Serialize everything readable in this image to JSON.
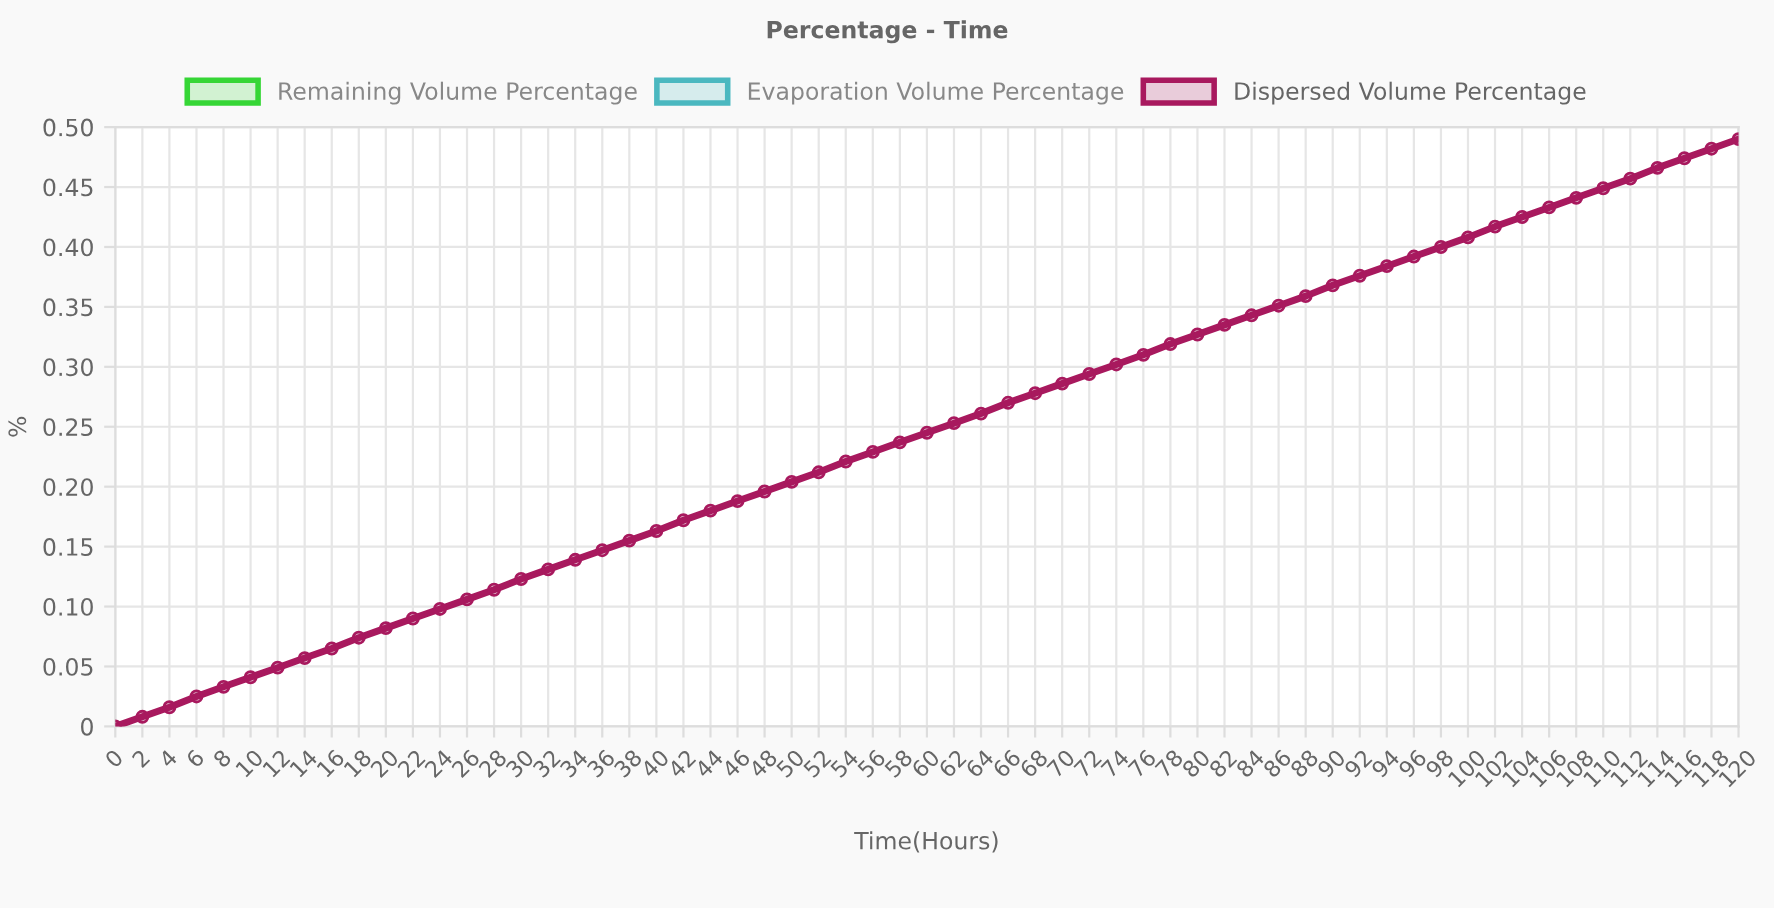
{
  "chart_data": {
    "type": "line",
    "title": "Percentage - Time",
    "xlabel": "Time(Hours)",
    "ylabel": "%",
    "x": [
      0,
      2,
      4,
      6,
      8,
      10,
      12,
      14,
      16,
      18,
      20,
      22,
      24,
      26,
      28,
      30,
      32,
      34,
      36,
      38,
      40,
      42,
      44,
      46,
      48,
      50,
      52,
      54,
      56,
      58,
      60,
      62,
      64,
      66,
      68,
      70,
      72,
      74,
      76,
      78,
      80,
      82,
      84,
      86,
      88,
      90,
      92,
      94,
      96,
      98,
      100,
      102,
      104,
      106,
      108,
      110,
      112,
      114,
      116,
      118,
      120
    ],
    "series": [
      {
        "name": "Remaining Volume Percentage",
        "color": "#36d636",
        "values": [
          null,
          null,
          null,
          null,
          null,
          null,
          null,
          null,
          null,
          null,
          null,
          null,
          null,
          null,
          null,
          null,
          null,
          null,
          null,
          null,
          null,
          null,
          null,
          null,
          null,
          null,
          null,
          null,
          null,
          null,
          null,
          null,
          null,
          null,
          null,
          null,
          null,
          null,
          null,
          null,
          null,
          null,
          null,
          null,
          null,
          null,
          null,
          null,
          null,
          null,
          null,
          null,
          null,
          null,
          null,
          null,
          null,
          null,
          null,
          null,
          null
        ]
      },
      {
        "name": "Evaporation Volume Percentage",
        "color": "#4bb8c0",
        "values": [
          null,
          null,
          null,
          null,
          null,
          null,
          null,
          null,
          null,
          null,
          null,
          null,
          null,
          null,
          null,
          null,
          null,
          null,
          null,
          null,
          null,
          null,
          null,
          null,
          null,
          null,
          null,
          null,
          null,
          null,
          null,
          null,
          null,
          null,
          null,
          null,
          null,
          null,
          null,
          null,
          null,
          null,
          null,
          null,
          null,
          null,
          null,
          null,
          null,
          null,
          null,
          null,
          null,
          null,
          null,
          null,
          null,
          null,
          null,
          null,
          null
        ]
      },
      {
        "name": "Dispersed Volume Percentage",
        "color": "#a8195e",
        "values": [
          0,
          0.008,
          0.016,
          0.025,
          0.033,
          0.041,
          0.049,
          0.057,
          0.065,
          0.074,
          0.082,
          0.09,
          0.098,
          0.106,
          0.114,
          0.123,
          0.131,
          0.139,
          0.147,
          0.155,
          0.163,
          0.172,
          0.18,
          0.188,
          0.196,
          0.204,
          0.212,
          0.221,
          0.229,
          0.237,
          0.245,
          0.253,
          0.261,
          0.27,
          0.278,
          0.286,
          0.294,
          0.302,
          0.31,
          0.319,
          0.327,
          0.335,
          0.343,
          0.351,
          0.359,
          0.368,
          0.376,
          0.384,
          0.392,
          0.4,
          0.408,
          0.417,
          0.425,
          0.433,
          0.441,
          0.449,
          0.457,
          0.466,
          0.474,
          0.482,
          0.49
        ]
      }
    ],
    "xlim": [
      0,
      120
    ],
    "xticks": [
      0,
      2,
      4,
      6,
      8,
      10,
      12,
      14,
      16,
      18,
      20,
      22,
      24,
      26,
      28,
      30,
      32,
      34,
      36,
      38,
      40,
      42,
      44,
      46,
      48,
      50,
      52,
      54,
      56,
      58,
      60,
      62,
      64,
      66,
      68,
      70,
      72,
      74,
      76,
      78,
      80,
      82,
      84,
      86,
      88,
      90,
      92,
      94,
      96,
      98,
      100,
      102,
      104,
      106,
      108,
      110,
      112,
      114,
      116,
      118,
      120
    ],
    "ylim": [
      0,
      0.5
    ],
    "yticks": [
      0,
      {
        "value": 0.05,
        "label": "0.05"
      },
      {
        "value": 0.1,
        "label": "0.10"
      },
      {
        "value": 0.15,
        "label": "0.15"
      },
      {
        "value": 0.2,
        "label": "0.20"
      },
      {
        "value": 0.25,
        "label": "0.25"
      },
      {
        "value": 0.3,
        "label": "0.30"
      },
      {
        "value": 0.35,
        "label": "0.35"
      },
      {
        "value": 0.4,
        "label": "0.40"
      },
      {
        "value": 0.45,
        "label": "0.45"
      },
      {
        "value": 0.5,
        "label": "0.50"
      }
    ],
    "grid": true,
    "legend": "top",
    "marker": "circle",
    "line_style": "solid"
  }
}
